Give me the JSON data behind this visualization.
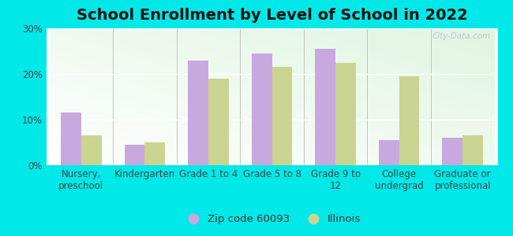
{
  "title": "School Enrollment by Level of School in 2022",
  "categories": [
    "Nursery,\npreschool",
    "Kindergarten",
    "Grade 1 to 4",
    "Grade 5 to 8",
    "Grade 9 to\n12",
    "College\nundergrad",
    "Graduate or\nprofessional"
  ],
  "zip_values": [
    11.5,
    4.5,
    23.0,
    24.5,
    25.5,
    5.5,
    6.0
  ],
  "illinois_values": [
    6.5,
    5.0,
    19.0,
    21.5,
    22.5,
    19.5,
    6.5
  ],
  "zip_color": "#c9a8e0",
  "illinois_color": "#c9d490",
  "background_color": "#00e8e8",
  "ylim": [
    0,
    30
  ],
  "yticks": [
    0,
    10,
    20,
    30
  ],
  "ytick_labels": [
    "0%",
    "10%",
    "20%",
    "30%"
  ],
  "legend_zip_label": "Zip code 60093",
  "legend_illinois_label": "Illinois",
  "title_fontsize": 14,
  "tick_fontsize": 8.5,
  "legend_fontsize": 9.5,
  "bar_width": 0.32,
  "watermark": "City-Data.com"
}
